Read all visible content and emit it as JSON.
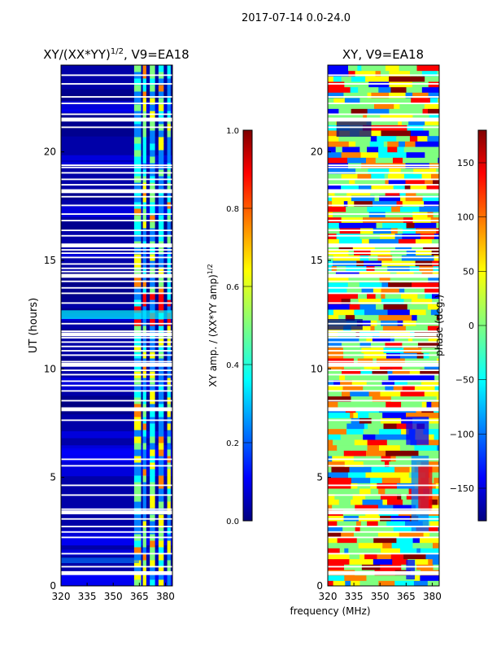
{
  "suptitle": "2017-07-14 0.0-24.0",
  "common_xlabel": "frequency (MHz)",
  "colormap": [
    "#00007f",
    "#0000ff",
    "#007fff",
    "#00ffff",
    "#7fff7f",
    "#ffff00",
    "#ff7f00",
    "#ff0000",
    "#7f0000"
  ],
  "chart_data": [
    {
      "type": "heatmap",
      "title_main": "XY/(XX*YY)",
      "title_sup": "1/2",
      "title_suffix": ", V9=EA18",
      "xlabel": "",
      "ylabel": "UT (hours)",
      "xlim": [
        320,
        384
      ],
      "ylim": [
        0,
        24
      ],
      "xticks": [
        "320",
        "335",
        "350",
        "365",
        "380"
      ],
      "yticks": [
        "0",
        "5",
        "10",
        "15",
        "20"
      ],
      "colorbar": {
        "label_main": "XY amp. / (XX*YY amp)",
        "label_sup": "1/2",
        "range": [
          0.0,
          1.0
        ],
        "ticks": [
          "0.0",
          "0.2",
          "0.4",
          "0.6",
          "0.8",
          "1.0"
        ]
      }
    },
    {
      "type": "heatmap",
      "title_main": "XY, V9=EA18",
      "xlabel": "frequency (MHz)",
      "ylabel": "",
      "xlim": [
        320,
        384
      ],
      "ylim": [
        0,
        24
      ],
      "xticks": [
        "320",
        "335",
        "350",
        "365",
        "380"
      ],
      "yticks": [
        "0",
        "5",
        "10",
        "15",
        "20"
      ],
      "colorbar": {
        "label_main": "phase (deg.)",
        "range": [
          -180,
          180
        ],
        "ticks": [
          "−150",
          "−100",
          "−50",
          "0",
          "50",
          "100",
          "150"
        ]
      }
    }
  ]
}
